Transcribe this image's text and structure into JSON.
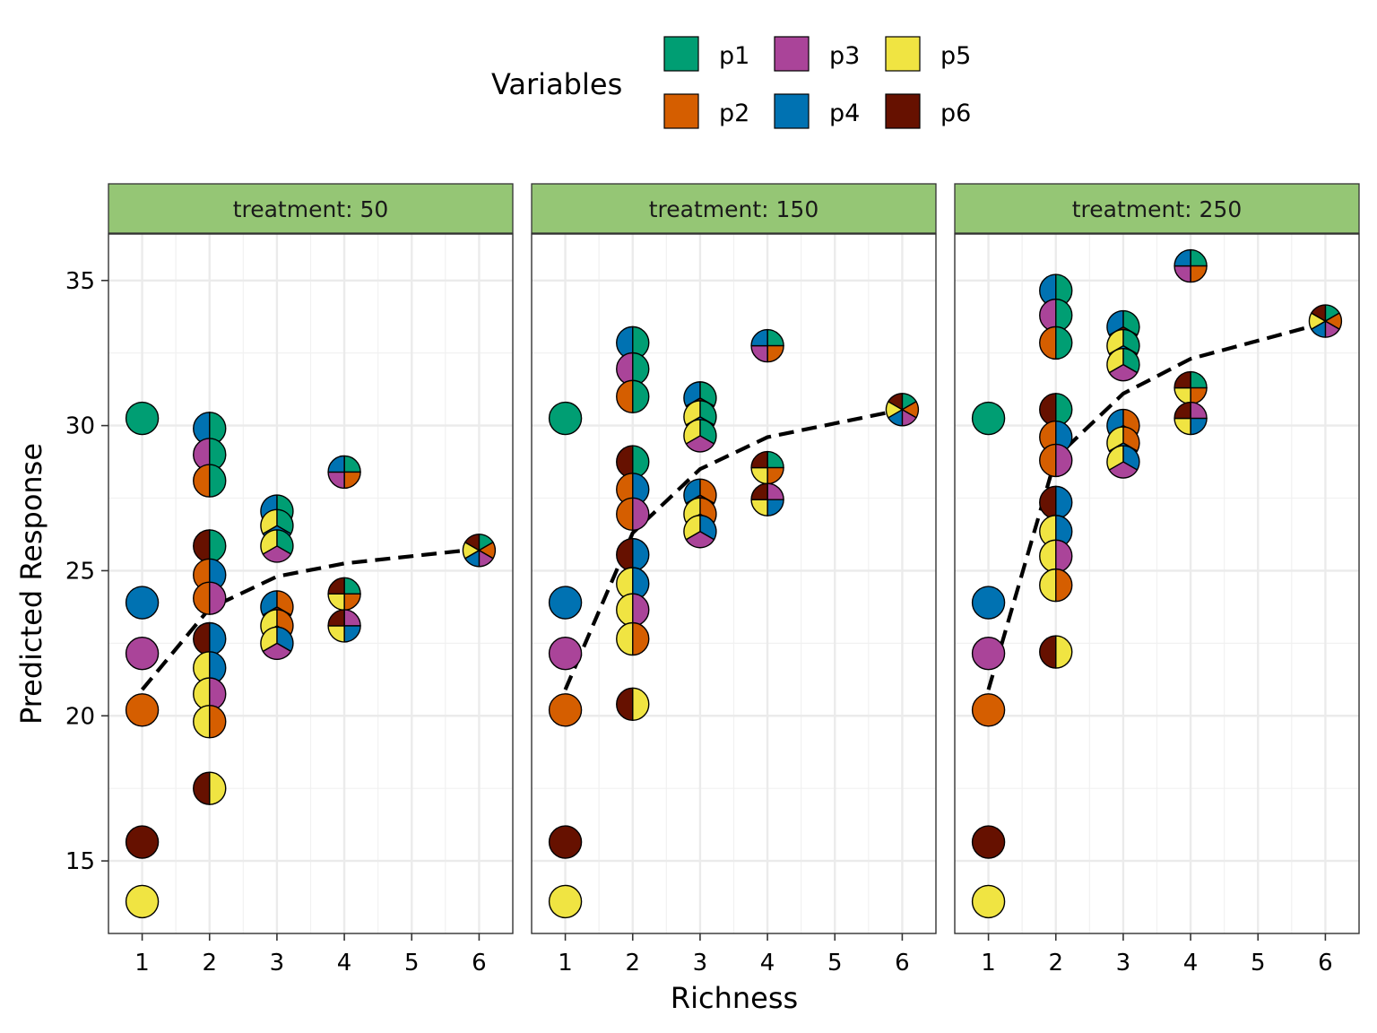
{
  "chart_data": {
    "type": "scatter",
    "subtype": "pie-glyph scatter with faceted panels",
    "xlabel": "Richness",
    "ylabel": "Predicted Response",
    "x_ticks": [
      1,
      2,
      3,
      4,
      5,
      6
    ],
    "y_ticks": [
      15,
      20,
      25,
      30,
      35
    ],
    "xlim": [
      0.5,
      6.5
    ],
    "ylim": [
      12.5,
      36.6
    ],
    "grid": true,
    "legend": {
      "title": "Variables",
      "position": "top",
      "entries": [
        {
          "name": "p1",
          "color": "#009E73"
        },
        {
          "name": "p2",
          "color": "#D55E00"
        },
        {
          "name": "p3",
          "color": "#AA4499"
        },
        {
          "name": "p4",
          "color": "#0072B2"
        },
        {
          "name": "p5",
          "color": "#F0E442"
        },
        {
          "name": "p6",
          "color": "#661100"
        }
      ]
    },
    "strip_fill": "#95C675",
    "trend_line": "dashed black",
    "panels": [
      {
        "label": "treatment: 50",
        "trend": [
          [
            1,
            20.9
          ],
          [
            2,
            23.7
          ],
          [
            3,
            24.8
          ],
          [
            4,
            25.25
          ],
          [
            6,
            25.75
          ]
        ],
        "points": [
          {
            "x": 1,
            "y": 30.25,
            "parts": [
              "p1"
            ]
          },
          {
            "x": 1,
            "y": 23.9,
            "parts": [
              "p4"
            ]
          },
          {
            "x": 1,
            "y": 22.15,
            "parts": [
              "p3"
            ]
          },
          {
            "x": 1,
            "y": 20.2,
            "parts": [
              "p2"
            ]
          },
          {
            "x": 1,
            "y": 15.65,
            "parts": [
              "p6"
            ]
          },
          {
            "x": 1,
            "y": 13.6,
            "parts": [
              "p5"
            ]
          },
          {
            "x": 2,
            "y": 29.9,
            "parts": [
              "p1",
              "p4"
            ]
          },
          {
            "x": 2,
            "y": 29.0,
            "parts": [
              "p1",
              "p3"
            ]
          },
          {
            "x": 2,
            "y": 28.1,
            "parts": [
              "p1",
              "p2"
            ]
          },
          {
            "x": 2,
            "y": 25.85,
            "parts": [
              "p1",
              "p6"
            ]
          },
          {
            "x": 2,
            "y": 24.85,
            "parts": [
              "p4",
              "p2"
            ]
          },
          {
            "x": 2,
            "y": 24.05,
            "parts": [
              "p3",
              "p2"
            ]
          },
          {
            "x": 2,
            "y": 22.65,
            "parts": [
              "p4",
              "p6"
            ]
          },
          {
            "x": 2,
            "y": 21.65,
            "parts": [
              "p4",
              "p5"
            ]
          },
          {
            "x": 2,
            "y": 20.75,
            "parts": [
              "p3",
              "p5"
            ]
          },
          {
            "x": 2,
            "y": 19.8,
            "parts": [
              "p2",
              "p5"
            ]
          },
          {
            "x": 2,
            "y": 17.5,
            "parts": [
              "p5",
              "p6"
            ]
          },
          {
            "x": 3,
            "y": 27.05,
            "parts": [
              "p1",
              "p6",
              "p4"
            ]
          },
          {
            "x": 3,
            "y": 26.55,
            "parts": [
              "p1",
              "p4",
              "p5"
            ]
          },
          {
            "x": 3,
            "y": 25.85,
            "parts": [
              "p1",
              "p3",
              "p5"
            ]
          },
          {
            "x": 3,
            "y": 23.75,
            "parts": [
              "p2",
              "p6",
              "p4"
            ]
          },
          {
            "x": 3,
            "y": 23.1,
            "parts": [
              "p2",
              "p4",
              "p5"
            ]
          },
          {
            "x": 3,
            "y": 22.5,
            "parts": [
              "p4",
              "p3",
              "p5"
            ]
          },
          {
            "x": 4,
            "y": 28.4,
            "parts": [
              "p1",
              "p2",
              "p3",
              "p4"
            ]
          },
          {
            "x": 4,
            "y": 24.2,
            "parts": [
              "p1",
              "p2",
              "p5",
              "p6"
            ]
          },
          {
            "x": 4,
            "y": 23.1,
            "parts": [
              "p3",
              "p4",
              "p5",
              "p6"
            ]
          },
          {
            "x": 6,
            "y": 25.7,
            "parts": [
              "p1",
              "p2",
              "p3",
              "p4",
              "p5",
              "p6"
            ]
          }
        ]
      },
      {
        "label": "treatment: 150",
        "trend": [
          [
            1,
            20.9
          ],
          [
            2,
            26.3
          ],
          [
            3,
            28.5
          ],
          [
            4,
            29.6
          ],
          [
            6,
            30.55
          ]
        ],
        "points": [
          {
            "x": 1,
            "y": 30.25,
            "parts": [
              "p1"
            ]
          },
          {
            "x": 1,
            "y": 23.9,
            "parts": [
              "p4"
            ]
          },
          {
            "x": 1,
            "y": 22.15,
            "parts": [
              "p3"
            ]
          },
          {
            "x": 1,
            "y": 20.2,
            "parts": [
              "p2"
            ]
          },
          {
            "x": 1,
            "y": 15.65,
            "parts": [
              "p6"
            ]
          },
          {
            "x": 1,
            "y": 13.6,
            "parts": [
              "p5"
            ]
          },
          {
            "x": 2,
            "y": 32.85,
            "parts": [
              "p1",
              "p4"
            ]
          },
          {
            "x": 2,
            "y": 31.95,
            "parts": [
              "p1",
              "p3"
            ]
          },
          {
            "x": 2,
            "y": 31.0,
            "parts": [
              "p1",
              "p2"
            ]
          },
          {
            "x": 2,
            "y": 28.75,
            "parts": [
              "p1",
              "p6"
            ]
          },
          {
            "x": 2,
            "y": 27.8,
            "parts": [
              "p4",
              "p2"
            ]
          },
          {
            "x": 2,
            "y": 26.95,
            "parts": [
              "p3",
              "p2"
            ]
          },
          {
            "x": 2,
            "y": 25.55,
            "parts": [
              "p4",
              "p6"
            ]
          },
          {
            "x": 2,
            "y": 24.55,
            "parts": [
              "p4",
              "p5"
            ]
          },
          {
            "x": 2,
            "y": 23.65,
            "parts": [
              "p3",
              "p5"
            ]
          },
          {
            "x": 2,
            "y": 22.65,
            "parts": [
              "p2",
              "p5"
            ]
          },
          {
            "x": 2,
            "y": 20.4,
            "parts": [
              "p5",
              "p6"
            ]
          },
          {
            "x": 3,
            "y": 30.95,
            "parts": [
              "p1",
              "p6",
              "p4"
            ]
          },
          {
            "x": 3,
            "y": 30.3,
            "parts": [
              "p1",
              "p4",
              "p5"
            ]
          },
          {
            "x": 3,
            "y": 29.65,
            "parts": [
              "p1",
              "p3",
              "p5"
            ]
          },
          {
            "x": 3,
            "y": 27.6,
            "parts": [
              "p2",
              "p6",
              "p4"
            ]
          },
          {
            "x": 3,
            "y": 26.95,
            "parts": [
              "p2",
              "p4",
              "p5"
            ]
          },
          {
            "x": 3,
            "y": 26.35,
            "parts": [
              "p4",
              "p3",
              "p5"
            ]
          },
          {
            "x": 4,
            "y": 32.75,
            "parts": [
              "p1",
              "p2",
              "p3",
              "p4"
            ]
          },
          {
            "x": 4,
            "y": 28.55,
            "parts": [
              "p1",
              "p2",
              "p5",
              "p6"
            ]
          },
          {
            "x": 4,
            "y": 27.45,
            "parts": [
              "p3",
              "p4",
              "p5",
              "p6"
            ]
          },
          {
            "x": 6,
            "y": 30.55,
            "parts": [
              "p1",
              "p2",
              "p3",
              "p4",
              "p5",
              "p6"
            ]
          }
        ]
      },
      {
        "label": "treatment: 250",
        "trend": [
          [
            1,
            20.9
          ],
          [
            2,
            28.9
          ],
          [
            3,
            31.1
          ],
          [
            4,
            32.3
          ],
          [
            6,
            33.55
          ]
        ],
        "points": [
          {
            "x": 1,
            "y": 30.25,
            "parts": [
              "p1"
            ]
          },
          {
            "x": 1,
            "y": 23.9,
            "parts": [
              "p4"
            ]
          },
          {
            "x": 1,
            "y": 22.15,
            "parts": [
              "p3"
            ]
          },
          {
            "x": 1,
            "y": 20.2,
            "parts": [
              "p2"
            ]
          },
          {
            "x": 1,
            "y": 15.65,
            "parts": [
              "p6"
            ]
          },
          {
            "x": 1,
            "y": 13.6,
            "parts": [
              "p5"
            ]
          },
          {
            "x": 2,
            "y": 34.65,
            "parts": [
              "p1",
              "p4"
            ]
          },
          {
            "x": 2,
            "y": 33.8,
            "parts": [
              "p1",
              "p3"
            ]
          },
          {
            "x": 2,
            "y": 32.85,
            "parts": [
              "p1",
              "p2"
            ]
          },
          {
            "x": 2,
            "y": 30.55,
            "parts": [
              "p1",
              "p6"
            ]
          },
          {
            "x": 2,
            "y": 29.6,
            "parts": [
              "p4",
              "p2"
            ]
          },
          {
            "x": 2,
            "y": 28.8,
            "parts": [
              "p3",
              "p2"
            ]
          },
          {
            "x": 2,
            "y": 27.35,
            "parts": [
              "p4",
              "p6"
            ]
          },
          {
            "x": 2,
            "y": 26.35,
            "parts": [
              "p4",
              "p5"
            ]
          },
          {
            "x": 2,
            "y": 25.5,
            "parts": [
              "p3",
              "p5"
            ]
          },
          {
            "x": 2,
            "y": 24.5,
            "parts": [
              "p2",
              "p5"
            ]
          },
          {
            "x": 2,
            "y": 22.2,
            "parts": [
              "p5",
              "p6"
            ]
          },
          {
            "x": 3,
            "y": 33.4,
            "parts": [
              "p1",
              "p6",
              "p4"
            ]
          },
          {
            "x": 3,
            "y": 32.75,
            "parts": [
              "p1",
              "p4",
              "p5"
            ]
          },
          {
            "x": 3,
            "y": 32.1,
            "parts": [
              "p1",
              "p3",
              "p5"
            ]
          },
          {
            "x": 3,
            "y": 30.0,
            "parts": [
              "p2",
              "p6",
              "p4"
            ]
          },
          {
            "x": 3,
            "y": 29.4,
            "parts": [
              "p2",
              "p4",
              "p5"
            ]
          },
          {
            "x": 3,
            "y": 28.75,
            "parts": [
              "p4",
              "p3",
              "p5"
            ]
          },
          {
            "x": 4,
            "y": 35.5,
            "parts": [
              "p1",
              "p2",
              "p3",
              "p4"
            ]
          },
          {
            "x": 4,
            "y": 31.3,
            "parts": [
              "p1",
              "p2",
              "p5",
              "p6"
            ]
          },
          {
            "x": 4,
            "y": 30.25,
            "parts": [
              "p3",
              "p4",
              "p5",
              "p6"
            ]
          },
          {
            "x": 6,
            "y": 33.6,
            "parts": [
              "p1",
              "p2",
              "p3",
              "p4",
              "p5",
              "p6"
            ]
          }
        ]
      }
    ]
  }
}
